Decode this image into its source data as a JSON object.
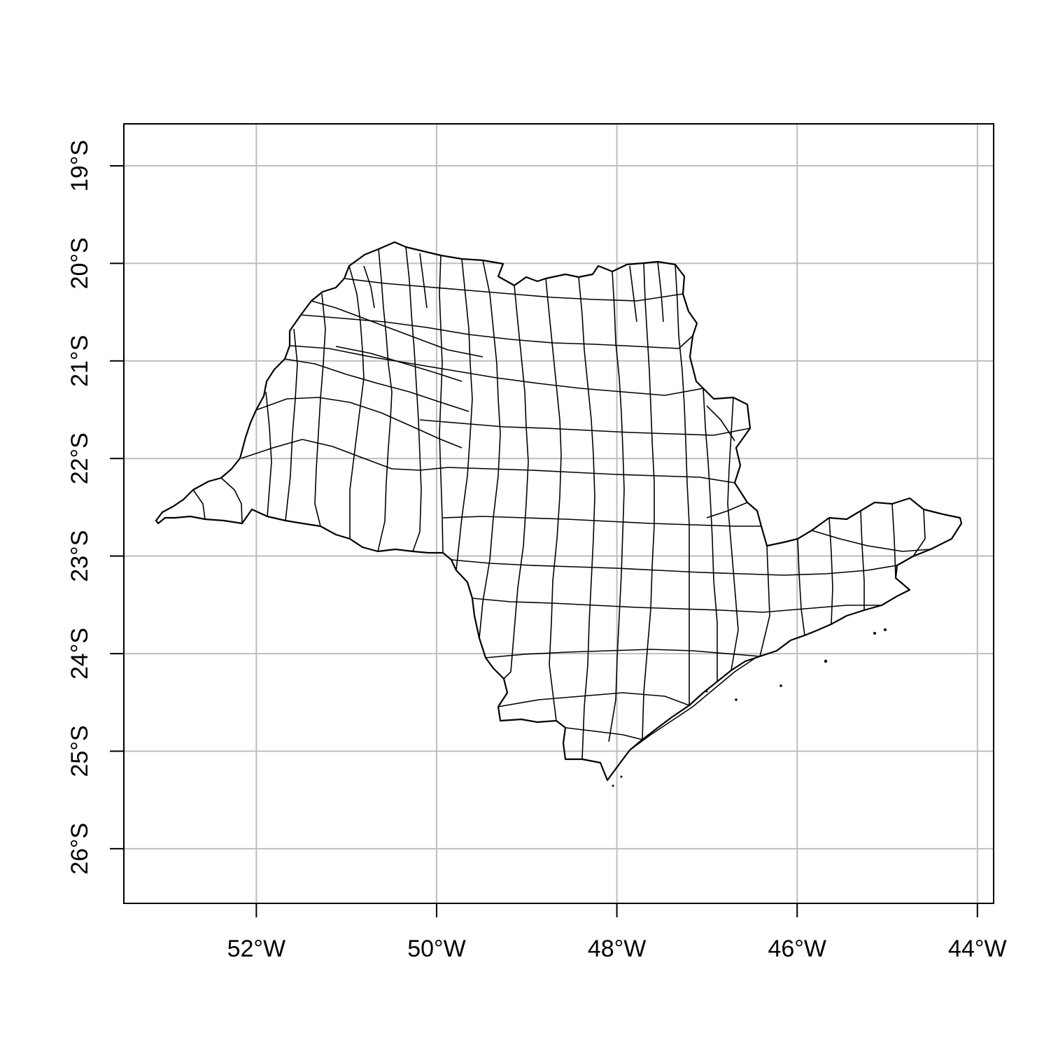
{
  "map": {
    "x_ticks": [
      {
        "lon": -52,
        "label": "52°W"
      },
      {
        "lon": -50,
        "label": "50°W"
      },
      {
        "lon": -48,
        "label": "48°W"
      },
      {
        "lon": -46,
        "label": "46°W"
      },
      {
        "lon": -44,
        "label": "44°W"
      }
    ],
    "y_ticks": [
      {
        "lat": -19,
        "label": "19°S"
      },
      {
        "lat": -20,
        "label": "20°S"
      },
      {
        "lat": -21,
        "label": "21°S"
      },
      {
        "lat": -22,
        "label": "22°S"
      },
      {
        "lat": -23,
        "label": "23°S"
      },
      {
        "lat": -24,
        "label": "24°S"
      },
      {
        "lat": -25,
        "label": "25°S"
      },
      {
        "lat": -26,
        "label": "26°S"
      }
    ],
    "lon_range": [
      -53.47,
      -43.82
    ],
    "lat_range": [
      -26.56,
      -18.57
    ],
    "grid": true,
    "grid_color": "#bebebe",
    "outline_color": "#000000"
  }
}
